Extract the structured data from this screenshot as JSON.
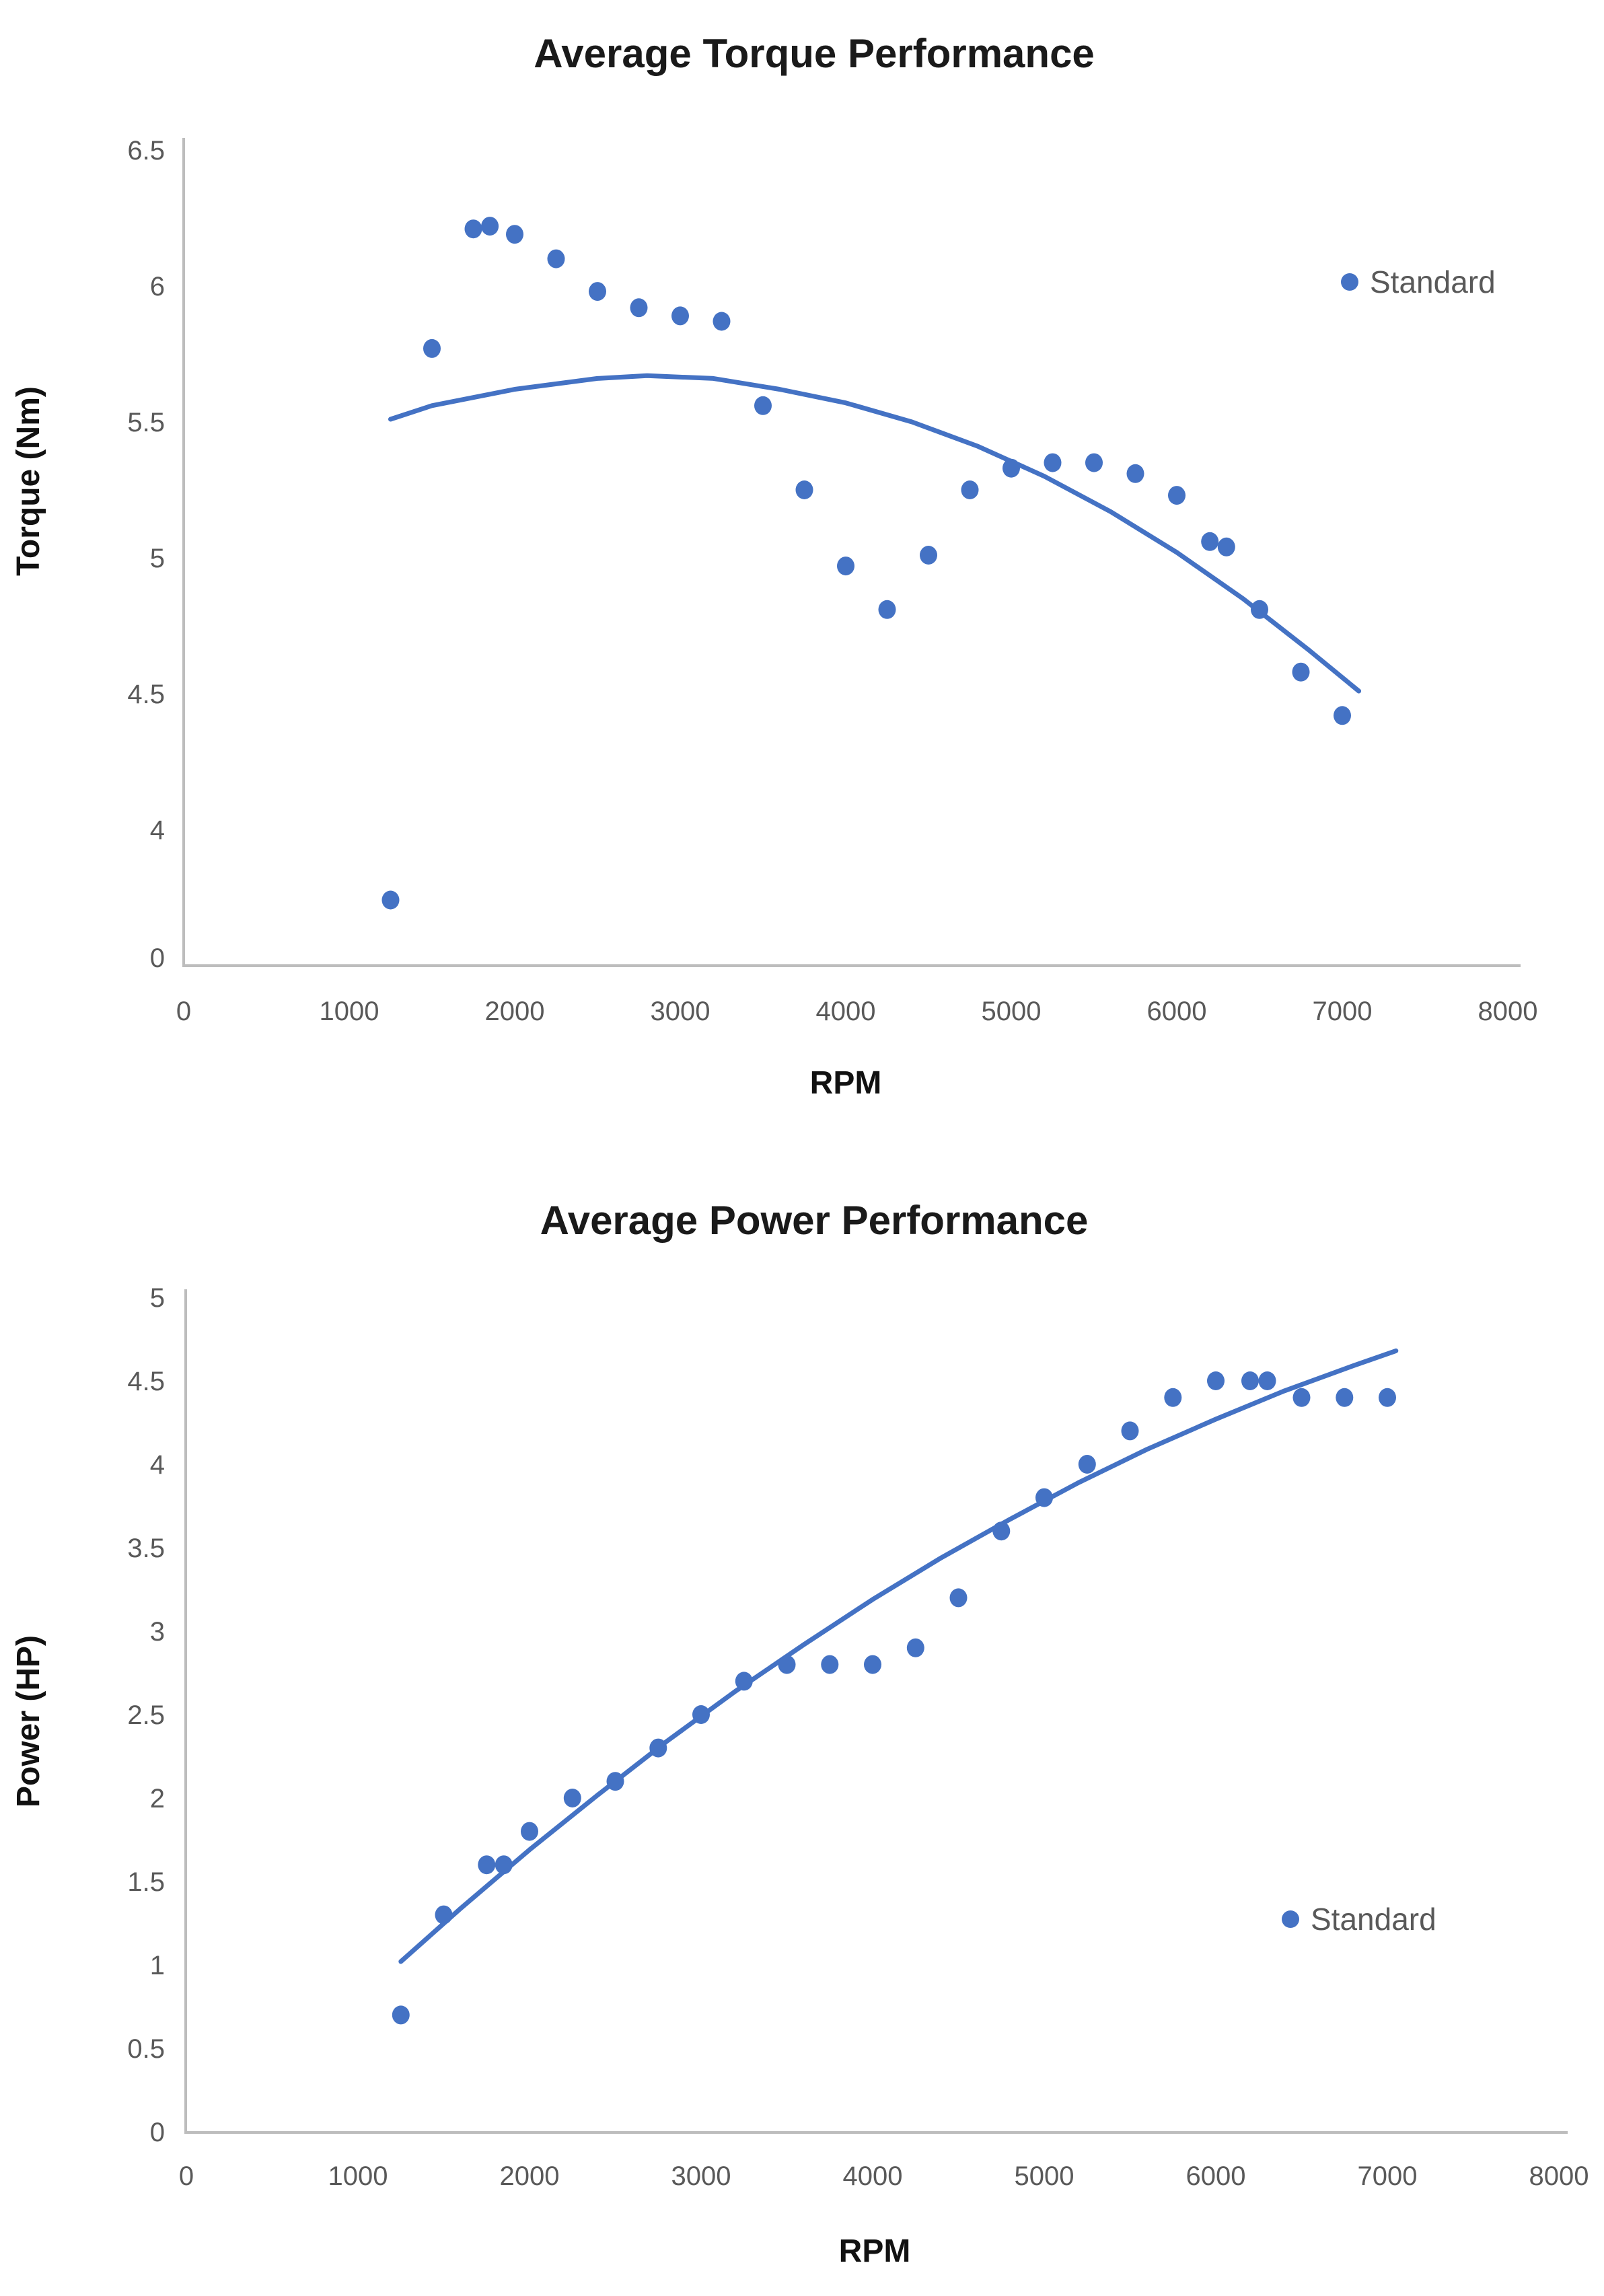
{
  "page": {
    "background": "#FFFFFF"
  },
  "colors": {
    "series": "#4472C4",
    "trendline": "#4472C4",
    "axis_line": "#BDBDBD",
    "tick_label": "#595959",
    "title_text": "#1A1A1A",
    "legend_text": "#595959"
  },
  "chart_data": [
    {
      "type": "scatter",
      "title": "Average Torque Performance",
      "xlabel": "RPM",
      "ylabel": "Torque (Nm)",
      "legend": {
        "label": "Standard",
        "marker": "circle-icon",
        "position": "right-upper"
      },
      "grid": "off",
      "x_axis": {
        "min": 0,
        "max": 8000,
        "tick_labels": [
          "0",
          "1000",
          "2000",
          "3000",
          "4000",
          "5000",
          "6000",
          "7000",
          "8000"
        ]
      },
      "y_axis": {
        "tick_labels": [
          "6.5",
          "6",
          "5.5",
          "5",
          "4.5",
          "4",
          "0"
        ],
        "units": "Nm",
        "note": "broken axis: the 0-to-4 range is compressed into a single tick interval below 4"
      },
      "series": [
        {
          "name": "Standard",
          "points": [
            [
              1250,
              1.8
            ],
            [
              1500,
              5.77
            ],
            [
              1750,
              6.21
            ],
            [
              1850,
              6.22
            ],
            [
              2000,
              6.19
            ],
            [
              2250,
              6.1
            ],
            [
              2500,
              5.98
            ],
            [
              2750,
              5.92
            ],
            [
              3000,
              5.89
            ],
            [
              3250,
              5.87
            ],
            [
              3500,
              5.56
            ],
            [
              3750,
              5.25
            ],
            [
              4000,
              4.97
            ],
            [
              4250,
              4.81
            ],
            [
              4500,
              5.01
            ],
            [
              4750,
              5.25
            ],
            [
              5000,
              5.33
            ],
            [
              5250,
              5.35
            ],
            [
              5500,
              5.35
            ],
            [
              5750,
              5.31
            ],
            [
              6000,
              5.23
            ],
            [
              6200,
              5.06
            ],
            [
              6300,
              5.04
            ],
            [
              6500,
              4.81
            ],
            [
              6750,
              4.58
            ],
            [
              7000,
              4.42
            ]
          ]
        }
      ],
      "trendline": {
        "style": "polynomial",
        "points": [
          [
            1250,
            5.51
          ],
          [
            1500,
            5.56
          ],
          [
            2000,
            5.62
          ],
          [
            2500,
            5.66
          ],
          [
            2800,
            5.67
          ],
          [
            3200,
            5.66
          ],
          [
            3600,
            5.62
          ],
          [
            4000,
            5.57
          ],
          [
            4400,
            5.5
          ],
          [
            4800,
            5.41
          ],
          [
            5200,
            5.3
          ],
          [
            5600,
            5.17
          ],
          [
            6000,
            5.02
          ],
          [
            6400,
            4.85
          ],
          [
            6800,
            4.66
          ],
          [
            7100,
            4.51
          ]
        ]
      }
    },
    {
      "type": "scatter",
      "title": "Average Power Performance",
      "xlabel": "RPM",
      "ylabel": "Power (HP)",
      "legend": {
        "label": "Standard",
        "marker": "circle-icon",
        "position": "right-lower"
      },
      "grid": "off",
      "x_axis": {
        "min": 0,
        "max": 8000,
        "tick_labels": [
          "0",
          "1000",
          "2000",
          "3000",
          "4000",
          "5000",
          "6000",
          "7000",
          "8000"
        ]
      },
      "y_axis": {
        "min": 0,
        "max": 5,
        "tick_labels": [
          "5",
          "4.5",
          "4",
          "3.5",
          "3",
          "2.5",
          "2",
          "1.5",
          "1",
          "0.5",
          "0"
        ],
        "units": "HP"
      },
      "series": [
        {
          "name": "Standard",
          "points": [
            [
              1250,
              0.7
            ],
            [
              1500,
              1.3
            ],
            [
              1750,
              1.6
            ],
            [
              1850,
              1.6
            ],
            [
              2000,
              1.8
            ],
            [
              2250,
              2.0
            ],
            [
              2500,
              2.1
            ],
            [
              2750,
              2.3
            ],
            [
              3000,
              2.5
            ],
            [
              3250,
              2.7
            ],
            [
              3500,
              2.8
            ],
            [
              3750,
              2.8
            ],
            [
              4000,
              2.8
            ],
            [
              4250,
              2.9
            ],
            [
              4500,
              3.2
            ],
            [
              4750,
              3.6
            ],
            [
              5000,
              3.8
            ],
            [
              5250,
              4.0
            ],
            [
              5500,
              4.2
            ],
            [
              5750,
              4.4
            ],
            [
              6000,
              4.5
            ],
            [
              6200,
              4.5
            ],
            [
              6300,
              4.5
            ],
            [
              6500,
              4.4
            ],
            [
              6750,
              4.4
            ],
            [
              7000,
              4.4
            ]
          ]
        }
      ],
      "trendline": {
        "style": "polynomial",
        "points": [
          [
            1250,
            1.02
          ],
          [
            1600,
            1.34
          ],
          [
            2000,
            1.69
          ],
          [
            2400,
            2.02
          ],
          [
            2800,
            2.34
          ],
          [
            3200,
            2.64
          ],
          [
            3600,
            2.92
          ],
          [
            4000,
            3.19
          ],
          [
            4400,
            3.44
          ],
          [
            4800,
            3.67
          ],
          [
            5200,
            3.89
          ],
          [
            5600,
            4.09
          ],
          [
            6000,
            4.27
          ],
          [
            6400,
            4.44
          ],
          [
            6800,
            4.59
          ],
          [
            7050,
            4.68
          ]
        ]
      }
    }
  ]
}
